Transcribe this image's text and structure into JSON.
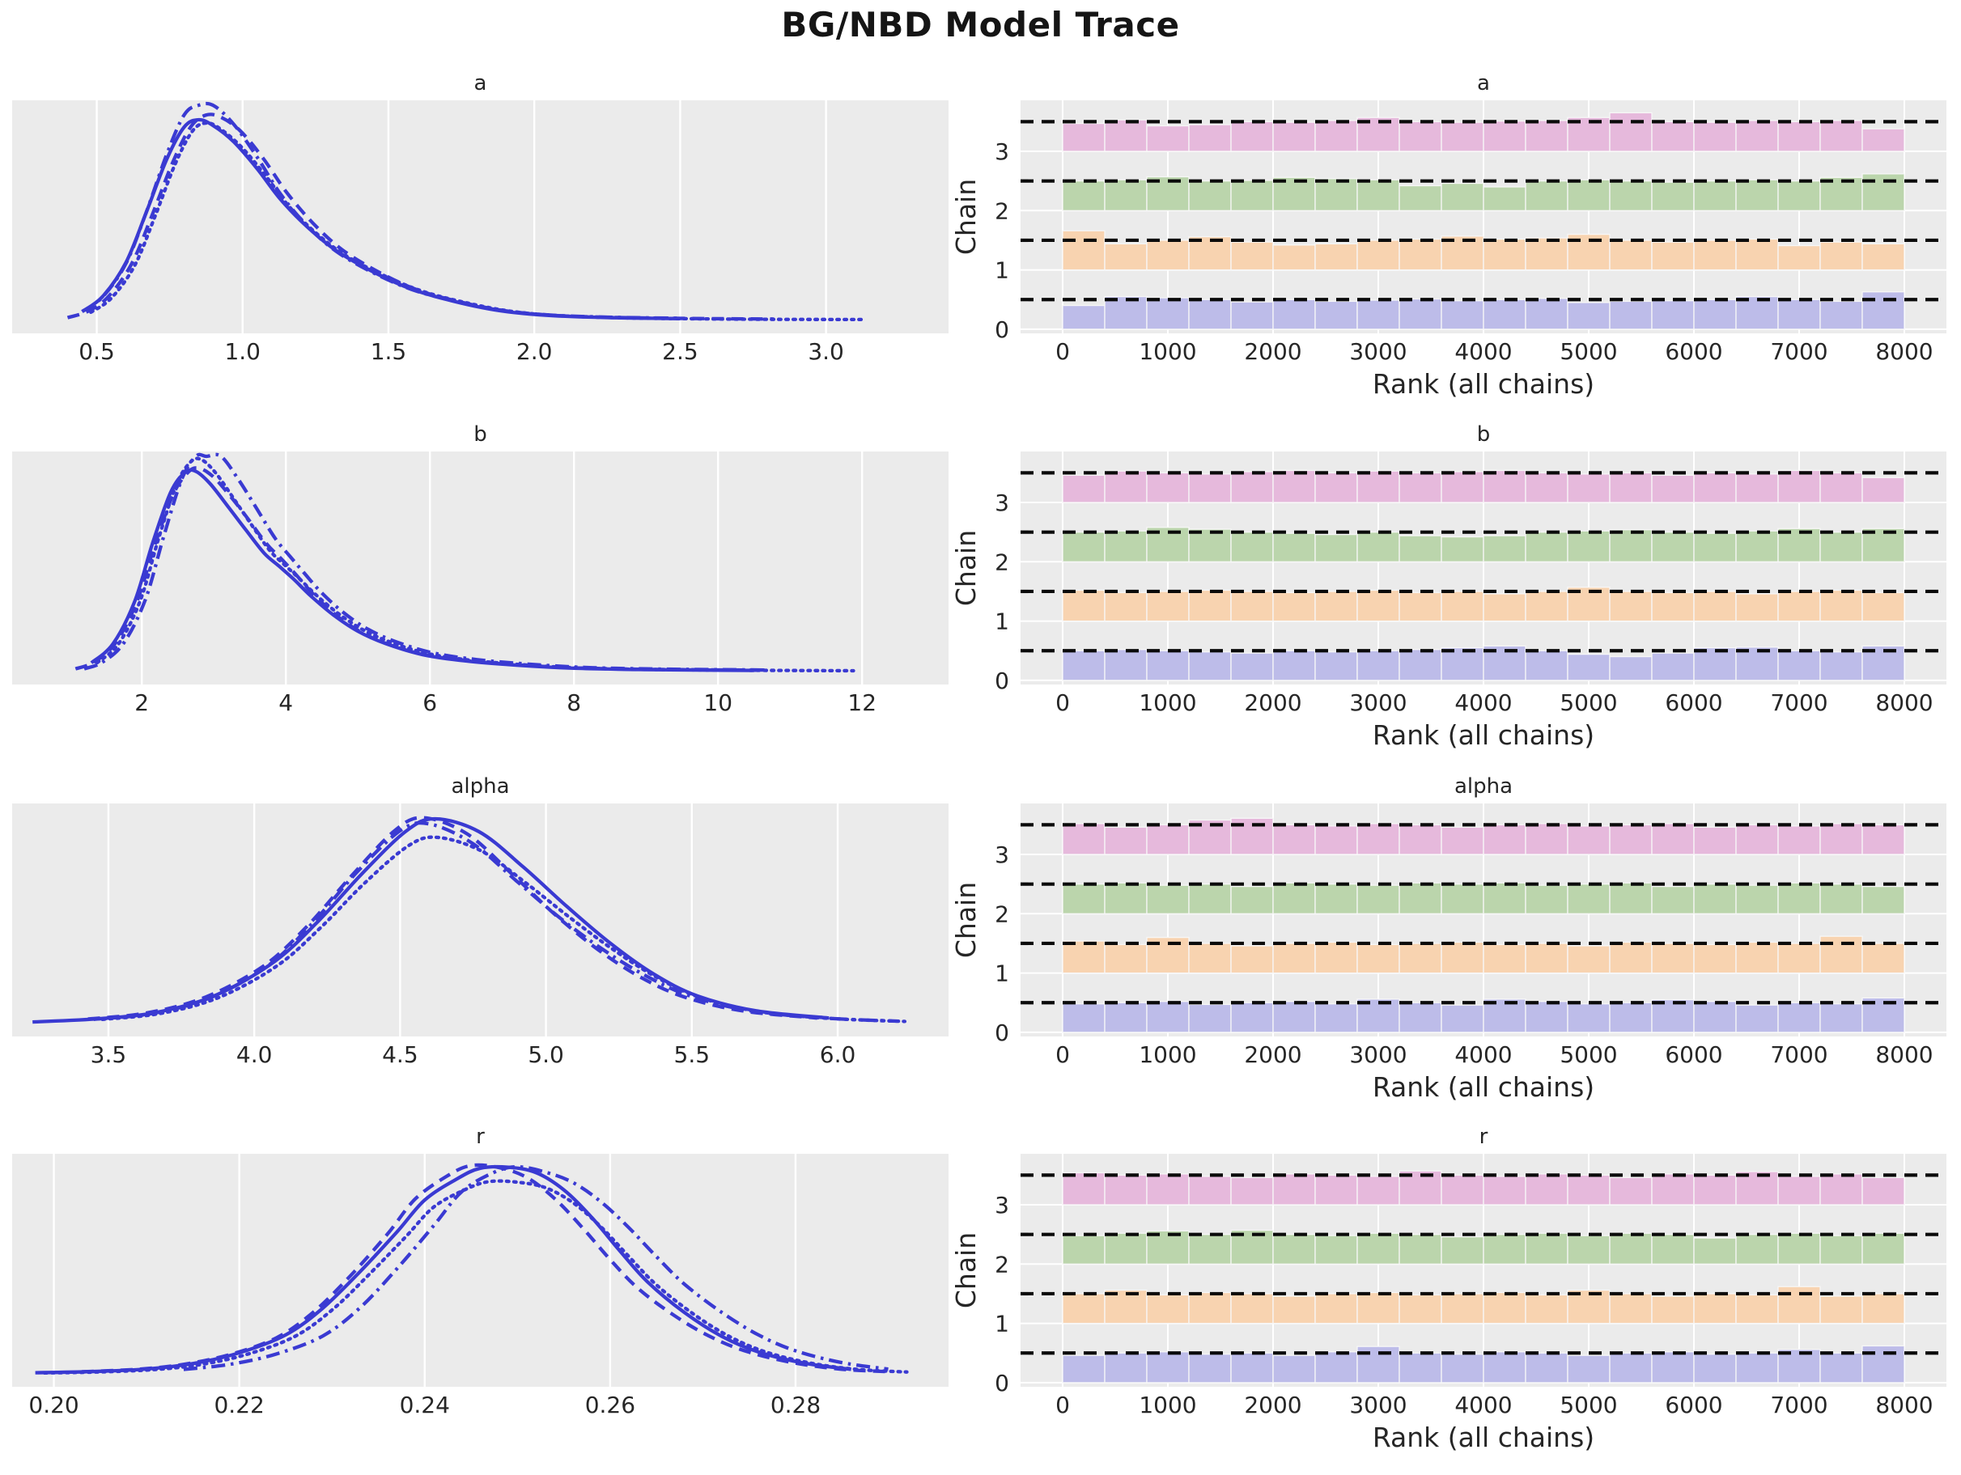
{
  "chart_data": {
    "type": "line",
    "subtype": "mcmc-trace-diagnostic",
    "suptitle": "BG/NBD Model Trace",
    "left_panels": "posterior KDE per chain",
    "right_panels": "rank histogram per chain",
    "style": {
      "panel_bg": "#ebebeb",
      "grid_color": "#ffffff",
      "kde_color": "#3a3ad2",
      "text_color": "#262626",
      "ref_line_color": "#0a0a0a",
      "chain_colors": [
        "#bdbce9",
        "#f8d3b0",
        "#bbd5ac",
        "#e6b9dc"
      ],
      "dash_patterns": [
        "",
        "15 9",
        "17 7 3.5 7",
        "2.8 6.2"
      ],
      "chain_line_styles": [
        "solid",
        "dashed",
        "dashdot",
        "dotted"
      ]
    },
    "rank": {
      "xlabel": "Rank (all chains)",
      "ylabel": "Chain",
      "xticks": [
        0,
        1000,
        2000,
        3000,
        4000,
        5000,
        6000,
        7000,
        8000
      ],
      "yticks": [
        0,
        1,
        2,
        3
      ],
      "xlim": [
        -400,
        8400
      ],
      "ylim": [
        -0.07,
        3.86
      ],
      "bins": 20,
      "bin_width": 400,
      "ref_offset": 0.5
    },
    "wiggle": {
      "amp": 0.03,
      "freq": 12.57,
      "phases": [
        0,
        1.8,
        3.6,
        5.4
      ]
    },
    "params": [
      {
        "name": "a",
        "xlim": [
          0.21,
          3.42
        ],
        "xtick_values": [
          0.5,
          1.0,
          1.5,
          2.0,
          2.5,
          3.0
        ],
        "xtick_labels": [
          "0.5",
          "1.0",
          "1.5",
          "2.0",
          "2.5",
          "3.0"
        ],
        "curve": [
          [
            0.38,
            0.02
          ],
          [
            0.45,
            0.05
          ],
          [
            0.52,
            0.12
          ],
          [
            0.6,
            0.28
          ],
          [
            0.67,
            0.52
          ],
          [
            0.74,
            0.78
          ],
          [
            0.8,
            0.95
          ],
          [
            0.85,
            1.0
          ],
          [
            0.9,
            0.98
          ],
          [
            0.97,
            0.9
          ],
          [
            1.05,
            0.76
          ],
          [
            1.13,
            0.6
          ],
          [
            1.22,
            0.46
          ],
          [
            1.32,
            0.34
          ],
          [
            1.45,
            0.235
          ],
          [
            1.58,
            0.155
          ],
          [
            1.72,
            0.1
          ],
          [
            1.88,
            0.055
          ],
          [
            2.05,
            0.032
          ],
          [
            2.25,
            0.022
          ],
          [
            2.5,
            0.017
          ],
          [
            2.8,
            0.014
          ],
          [
            3.1,
            0.013
          ],
          [
            3.3,
            0.012
          ]
        ],
        "mods": {
          "dx": [
            0,
            0.02,
            0,
            0.03
          ],
          "ys": [
            0.98,
            1.0,
            1.02,
            0.94
          ],
          "xs": [
            0.42,
            0.38,
            0.4,
            0.44
          ],
          "xe": [
            2.6,
            2.95,
            2.7,
            3.3
          ]
        },
        "rank_heights": [
          [
            0.4,
            0.55,
            0.53,
            0.5,
            0.46,
            0.5,
            0.47,
            0.49,
            0.51,
            0.48,
            0.5,
            0.52,
            0.45,
            0.47,
            0.48,
            0.5,
            0.55,
            0.5,
            0.47,
            0.63
          ],
          [
            0.66,
            0.44,
            0.5,
            0.56,
            0.47,
            0.42,
            0.44,
            0.5,
            0.52,
            0.57,
            0.52,
            0.54,
            0.6,
            0.5,
            0.47,
            0.5,
            0.52,
            0.41,
            0.47,
            0.44
          ],
          [
            0.5,
            0.52,
            0.57,
            0.5,
            0.51,
            0.56,
            0.54,
            0.52,
            0.42,
            0.46,
            0.4,
            0.5,
            0.52,
            0.5,
            0.48,
            0.5,
            0.52,
            0.5,
            0.56,
            0.62
          ],
          [
            0.47,
            0.53,
            0.43,
            0.45,
            0.5,
            0.49,
            0.52,
            0.57,
            0.5,
            0.49,
            0.51,
            0.52,
            0.57,
            0.65,
            0.5,
            0.49,
            0.52,
            0.5,
            0.52,
            0.38
          ]
        ]
      },
      {
        "name": "b",
        "xlim": [
          0.2,
          13.2
        ],
        "xtick_values": [
          2,
          4,
          6,
          8,
          10,
          12
        ],
        "xtick_labels": [
          "2",
          "4",
          "6",
          "8",
          "10",
          "12"
        ],
        "curve": [
          [
            1.05,
            0.02
          ],
          [
            1.3,
            0.05
          ],
          [
            1.6,
            0.14
          ],
          [
            1.9,
            0.34
          ],
          [
            2.15,
            0.62
          ],
          [
            2.4,
            0.87
          ],
          [
            2.6,
            0.98
          ],
          [
            2.75,
            1.0
          ],
          [
            2.95,
            0.95
          ],
          [
            3.2,
            0.84
          ],
          [
            3.45,
            0.72
          ],
          [
            3.7,
            0.6
          ],
          [
            3.9,
            0.53
          ],
          [
            4.1,
            0.46
          ],
          [
            4.35,
            0.37
          ],
          [
            4.65,
            0.28
          ],
          [
            5.0,
            0.2
          ],
          [
            5.4,
            0.14
          ],
          [
            5.9,
            0.09
          ],
          [
            6.5,
            0.06
          ],
          [
            7.2,
            0.04
          ],
          [
            8.0,
            0.025
          ],
          [
            9.0,
            0.018
          ],
          [
            10.5,
            0.014
          ],
          [
            11.8,
            0.012
          ],
          [
            12.7,
            0.011
          ]
        ],
        "mods": {
          "dx": [
            0,
            0.03,
            0.15,
            0.08
          ],
          "ys": [
            0.97,
            1.0,
            1.06,
            1.0
          ],
          "xs": [
            1.15,
            1.05,
            1.2,
            1.3
          ],
          "xe": [
            11.0,
            11.5,
            11.2,
            12.75
          ]
        },
        "rank_heights": [
          [
            0.5,
            0.52,
            0.5,
            0.48,
            0.46,
            0.5,
            0.48,
            0.5,
            0.52,
            0.55,
            0.58,
            0.5,
            0.44,
            0.4,
            0.46,
            0.55,
            0.56,
            0.5,
            0.48,
            0.58
          ],
          [
            0.52,
            0.48,
            0.5,
            0.52,
            0.5,
            0.48,
            0.5,
            0.52,
            0.48,
            0.5,
            0.46,
            0.5,
            0.57,
            0.5,
            0.48,
            0.5,
            0.46,
            0.5,
            0.52,
            0.48
          ],
          [
            0.5,
            0.52,
            0.58,
            0.55,
            0.5,
            0.48,
            0.46,
            0.5,
            0.44,
            0.42,
            0.44,
            0.5,
            0.52,
            0.54,
            0.5,
            0.48,
            0.52,
            0.56,
            0.5,
            0.56
          ],
          [
            0.46,
            0.53,
            0.5,
            0.48,
            0.52,
            0.54,
            0.5,
            0.53,
            0.5,
            0.52,
            0.54,
            0.5,
            0.48,
            0.5,
            0.46,
            0.5,
            0.48,
            0.54,
            0.5,
            0.42
          ]
        ]
      },
      {
        "name": "alpha",
        "xlim": [
          3.17,
          6.38
        ],
        "xtick_values": [
          3.5,
          4.0,
          4.5,
          5.0,
          5.5,
          6.0
        ],
        "xtick_labels": [
          "3.5",
          "4.0",
          "4.5",
          "5.0",
          "5.5",
          "6.0"
        ],
        "curve": [
          [
            3.22,
            0.015
          ],
          [
            3.45,
            0.03
          ],
          [
            3.65,
            0.06
          ],
          [
            3.85,
            0.14
          ],
          [
            4.05,
            0.3
          ],
          [
            4.2,
            0.5
          ],
          [
            4.35,
            0.74
          ],
          [
            4.5,
            0.95
          ],
          [
            4.6,
            1.0
          ],
          [
            4.75,
            0.92
          ],
          [
            4.9,
            0.74
          ],
          [
            5.05,
            0.55
          ],
          [
            5.2,
            0.38
          ],
          [
            5.35,
            0.24
          ],
          [
            5.5,
            0.14
          ],
          [
            5.7,
            0.07
          ],
          [
            5.95,
            0.035
          ],
          [
            6.2,
            0.02
          ],
          [
            6.35,
            0.015
          ]
        ],
        "mods": {
          "dx": [
            0.02,
            -0.02,
            0,
            0.03
          ],
          "ys": [
            1.0,
            0.96,
            0.95,
            0.92
          ],
          "xs": [
            3.22,
            3.3,
            3.35,
            3.4
          ],
          "xe": [
            6.1,
            6.15,
            6.2,
            6.35
          ]
        },
        "rank_heights": [
          [
            0.48,
            0.5,
            0.52,
            0.47,
            0.5,
            0.52,
            0.48,
            0.56,
            0.5,
            0.46,
            0.56,
            0.52,
            0.48,
            0.5,
            0.55,
            0.52,
            0.46,
            0.5,
            0.48,
            0.58
          ],
          [
            0.54,
            0.48,
            0.6,
            0.5,
            0.46,
            0.5,
            0.52,
            0.48,
            0.5,
            0.52,
            0.48,
            0.5,
            0.46,
            0.52,
            0.5,
            0.48,
            0.52,
            0.5,
            0.62,
            0.5
          ],
          [
            0.5,
            0.52,
            0.48,
            0.5,
            0.46,
            0.52,
            0.5,
            0.48,
            0.52,
            0.5,
            0.52,
            0.48,
            0.5,
            0.52,
            0.46,
            0.5,
            0.48,
            0.52,
            0.5,
            0.46
          ],
          [
            0.52,
            0.46,
            0.5,
            0.58,
            0.61,
            0.5,
            0.48,
            0.52,
            0.5,
            0.46,
            0.5,
            0.52,
            0.48,
            0.5,
            0.52,
            0.46,
            0.5,
            0.48,
            0.52,
            0.5
          ]
        ]
      },
      {
        "name": "r",
        "xlim": [
          0.1955,
          0.2965
        ],
        "xtick_values": [
          0.2,
          0.22,
          0.24,
          0.26,
          0.28
        ],
        "xtick_labels": [
          "0.20",
          "0.22",
          "0.24",
          "0.26",
          "0.28"
        ],
        "curve": [
          [
            0.198,
            0.013
          ],
          [
            0.204,
            0.018
          ],
          [
            0.21,
            0.03
          ],
          [
            0.215,
            0.055
          ],
          [
            0.22,
            0.105
          ],
          [
            0.225,
            0.19
          ],
          [
            0.229,
            0.32
          ],
          [
            0.233,
            0.5
          ],
          [
            0.237,
            0.7
          ],
          [
            0.24,
            0.86
          ],
          [
            0.2435,
            0.96
          ],
          [
            0.246,
            1.0
          ],
          [
            0.249,
            0.99
          ],
          [
            0.252,
            0.95
          ],
          [
            0.255,
            0.86
          ],
          [
            0.258,
            0.73
          ],
          [
            0.261,
            0.58
          ],
          [
            0.264,
            0.44
          ],
          [
            0.268,
            0.3
          ],
          [
            0.272,
            0.19
          ],
          [
            0.276,
            0.115
          ],
          [
            0.281,
            0.06
          ],
          [
            0.286,
            0.03
          ],
          [
            0.291,
            0.018
          ],
          [
            0.295,
            0.014
          ]
        ],
        "mods": {
          "dx": [
            0,
            -0.001,
            0.004,
            0.001
          ],
          "ys": [
            1.0,
            0.97,
            0.99,
            0.95
          ],
          "xs": [
            0.198,
            0.2,
            0.21,
            0.199
          ],
          "xe": [
            0.288,
            0.29,
            0.292,
            0.295
          ]
        },
        "rank_heights": [
          [
            0.46,
            0.5,
            0.52,
            0.48,
            0.5,
            0.46,
            0.52,
            0.61,
            0.5,
            0.48,
            0.52,
            0.5,
            0.46,
            0.5,
            0.52,
            0.48,
            0.5,
            0.56,
            0.5,
            0.62
          ],
          [
            0.5,
            0.56,
            0.48,
            0.52,
            0.5,
            0.46,
            0.5,
            0.52,
            0.48,
            0.5,
            0.52,
            0.48,
            0.56,
            0.5,
            0.46,
            0.5,
            0.48,
            0.62,
            0.46,
            0.5
          ],
          [
            0.48,
            0.52,
            0.56,
            0.5,
            0.57,
            0.5,
            0.48,
            0.52,
            0.5,
            0.46,
            0.5,
            0.52,
            0.48,
            0.52,
            0.5,
            0.44,
            0.5,
            0.52,
            0.48,
            0.52
          ],
          [
            0.54,
            0.5,
            0.52,
            0.48,
            0.46,
            0.52,
            0.5,
            0.48,
            0.57,
            0.5,
            0.48,
            0.52,
            0.5,
            0.46,
            0.52,
            0.5,
            0.56,
            0.48,
            0.52,
            0.46
          ]
        ]
      }
    ]
  }
}
